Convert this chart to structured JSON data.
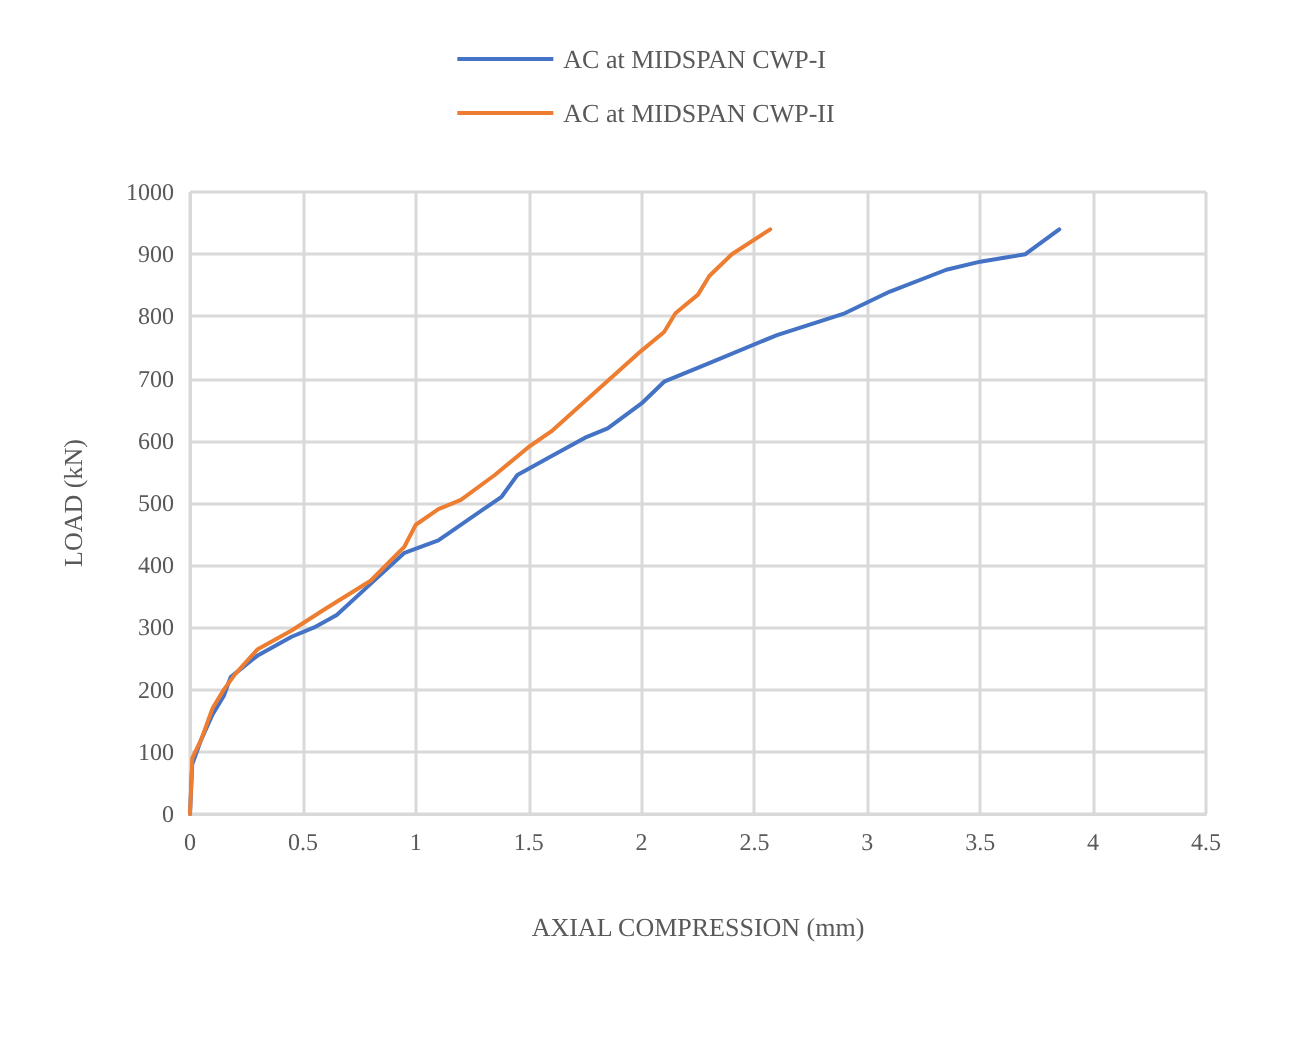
{
  "chart_data": {
    "type": "line",
    "xlabel": "AXIAL COMPRESSION (mm)",
    "ylabel": "LOAD (kN)",
    "xlim": [
      0,
      4.5
    ],
    "xticks": [
      0,
      0.5,
      1,
      1.5,
      2,
      2.5,
      3,
      3.5,
      4,
      4.5
    ],
    "ylim": [
      0,
      1000
    ],
    "yticks": [
      0,
      100,
      200,
      300,
      400,
      500,
      600,
      700,
      800,
      900,
      1000
    ],
    "grid": true,
    "legend": "top",
    "marker": "none",
    "line_style": "solid",
    "series": [
      {
        "name": "AC at MIDSPAN CWP-I",
        "color": "#4472c4",
        "x": [
          0,
          0.01,
          0.05,
          0.1,
          0.15,
          0.18,
          0.3,
          0.45,
          0.55,
          0.65,
          0.8,
          0.95,
          1.1,
          1.3,
          1.38,
          1.45,
          1.6,
          1.75,
          1.85,
          2.0,
          2.1,
          2.3,
          2.6,
          2.9,
          3.1,
          3.35,
          3.5,
          3.7,
          3.85
        ],
        "values": [
          0,
          80,
          120,
          160,
          190,
          220,
          255,
          285,
          300,
          320,
          370,
          420,
          440,
          490,
          510,
          545,
          575,
          605,
          620,
          660,
          695,
          725,
          770,
          805,
          840,
          875,
          888,
          900,
          940
        ]
      },
      {
        "name": "AC at MIDSPAN CWP-II",
        "color": "#ed7d31",
        "x": [
          0,
          0.01,
          0.05,
          0.1,
          0.15,
          0.2,
          0.3,
          0.45,
          0.6,
          0.8,
          0.95,
          1.0,
          1.1,
          1.2,
          1.35,
          1.5,
          1.6,
          1.8,
          2.0,
          2.1,
          2.15,
          2.25,
          2.3,
          2.4,
          2.57
        ],
        "values": [
          0,
          90,
          120,
          170,
          200,
          225,
          265,
          295,
          330,
          375,
          430,
          465,
          490,
          505,
          545,
          590,
          615,
          680,
          745,
          775,
          805,
          835,
          865,
          900,
          940
        ]
      }
    ]
  }
}
